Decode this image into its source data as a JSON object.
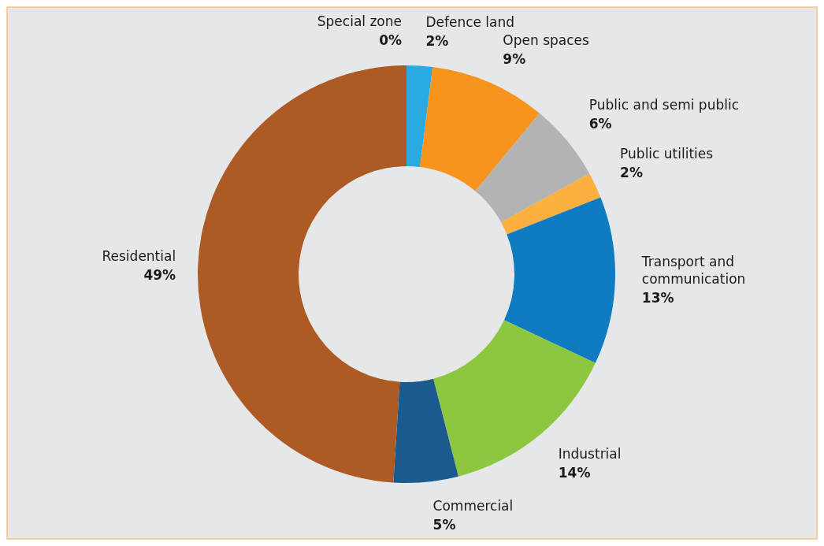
{
  "chart_data": {
    "type": "donut",
    "categories": [
      "Special zone",
      "Defence land",
      "Open spaces",
      "Public and semi public",
      "Public utilities",
      "Transport and communication",
      "Industrial",
      "Commercial",
      "Residential"
    ],
    "values": [
      0,
      2,
      9,
      6,
      2,
      13,
      14,
      5,
      49
    ],
    "value_labels": [
      "0%",
      "2%",
      "9%",
      "6%",
      "2%",
      "13%",
      "14%",
      "5%",
      "49%"
    ],
    "colors": [
      "#7f7f7f",
      "#29abe2",
      "#f7941d",
      "#b3b3b3",
      "#fbb040",
      "#0f7cc1",
      "#8dc63f",
      "#1a5a8e",
      "#ad5a25"
    ]
  }
}
